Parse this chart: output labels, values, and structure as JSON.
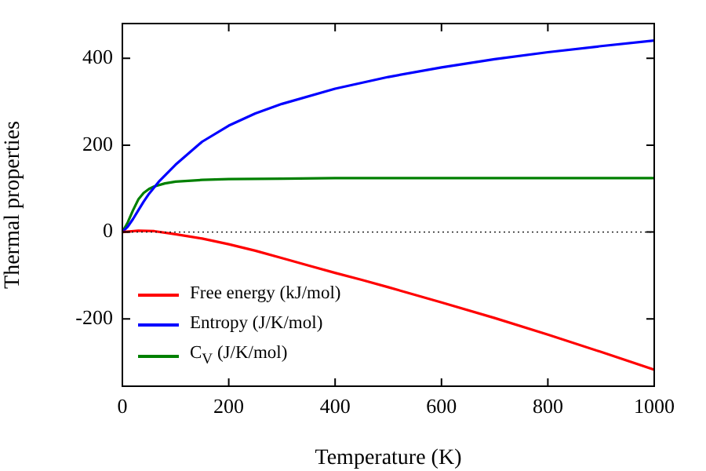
{
  "chart_data": {
    "type": "line",
    "xlabel": "Temperature (K)",
    "ylabel": "Thermal properties",
    "xlim": [
      0,
      1000
    ],
    "xticks": [
      0,
      200,
      400,
      600,
      800,
      1000
    ],
    "ylim": [
      -355,
      480
    ],
    "yticks": [
      -200,
      0,
      200,
      400
    ],
    "grid": false,
    "legend": "bottom left",
    "marker": "none",
    "line_style": "solid",
    "ref_lines": [
      {
        "axis": "y",
        "value": 0,
        "color": "#000000",
        "line_style": "dotted"
      }
    ],
    "series": [
      {
        "name": "Free energy (kJ/mol)",
        "color": "#ff0000",
        "x": [
          0,
          30,
          60,
          100,
          150,
          200,
          250,
          300,
          350,
          400,
          450,
          500,
          600,
          700,
          800,
          900,
          1000
        ],
        "values": [
          0,
          3,
          2,
          -5,
          -15,
          -28,
          -43,
          -60,
          -77,
          -94,
          -110,
          -127,
          -162,
          -198,
          -236,
          -276,
          -317
        ]
      },
      {
        "name": "Entropy (J/K/mol)",
        "color": "#0000ff",
        "x": [
          0,
          10,
          20,
          30,
          40,
          50,
          70,
          100,
          150,
          200,
          250,
          300,
          400,
          500,
          600,
          700,
          800,
          900,
          1000
        ],
        "values": [
          0,
          12,
          30,
          50,
          70,
          88,
          118,
          155,
          208,
          245,
          273,
          295,
          330,
          357,
          379,
          398,
          414,
          428,
          441
        ]
      },
      {
        "name": "C$_{V}$ (J/K/mol)",
        "color": "#008000",
        "x": [
          0,
          10,
          20,
          30,
          40,
          50,
          60,
          80,
          100,
          150,
          200,
          300,
          400,
          600,
          800,
          1000
        ],
        "values": [
          0,
          22,
          50,
          75,
          90,
          99,
          105,
          112,
          116,
          120,
          122,
          123,
          124,
          124,
          124,
          124
        ]
      }
    ]
  }
}
